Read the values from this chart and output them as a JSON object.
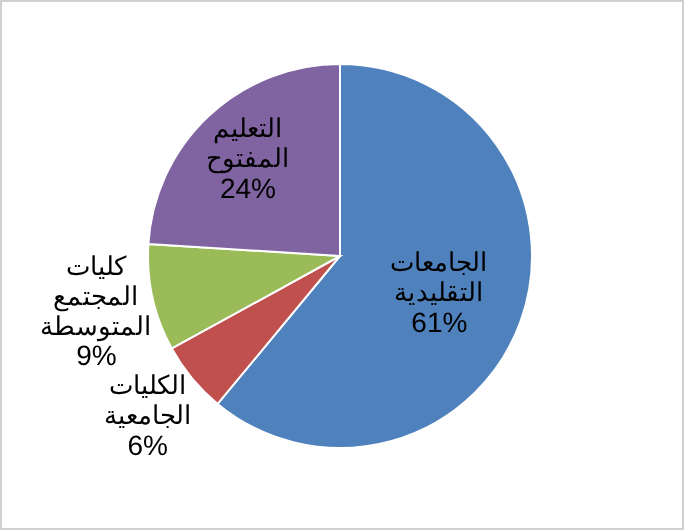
{
  "chart_data": {
    "type": "pie",
    "categories": [
      "الجامعات التقليدية",
      "الكليات الجامعية",
      "كليات المجتمع المتوسطة",
      "التعليم المفتوح"
    ],
    "values": [
      61,
      6,
      9,
      24
    ],
    "colors": [
      "#4f81bd",
      "#c0504d",
      "#9bbb59",
      "#8064a2"
    ],
    "value_labels": [
      "61%",
      "6%",
      "9%",
      "24%"
    ]
  }
}
